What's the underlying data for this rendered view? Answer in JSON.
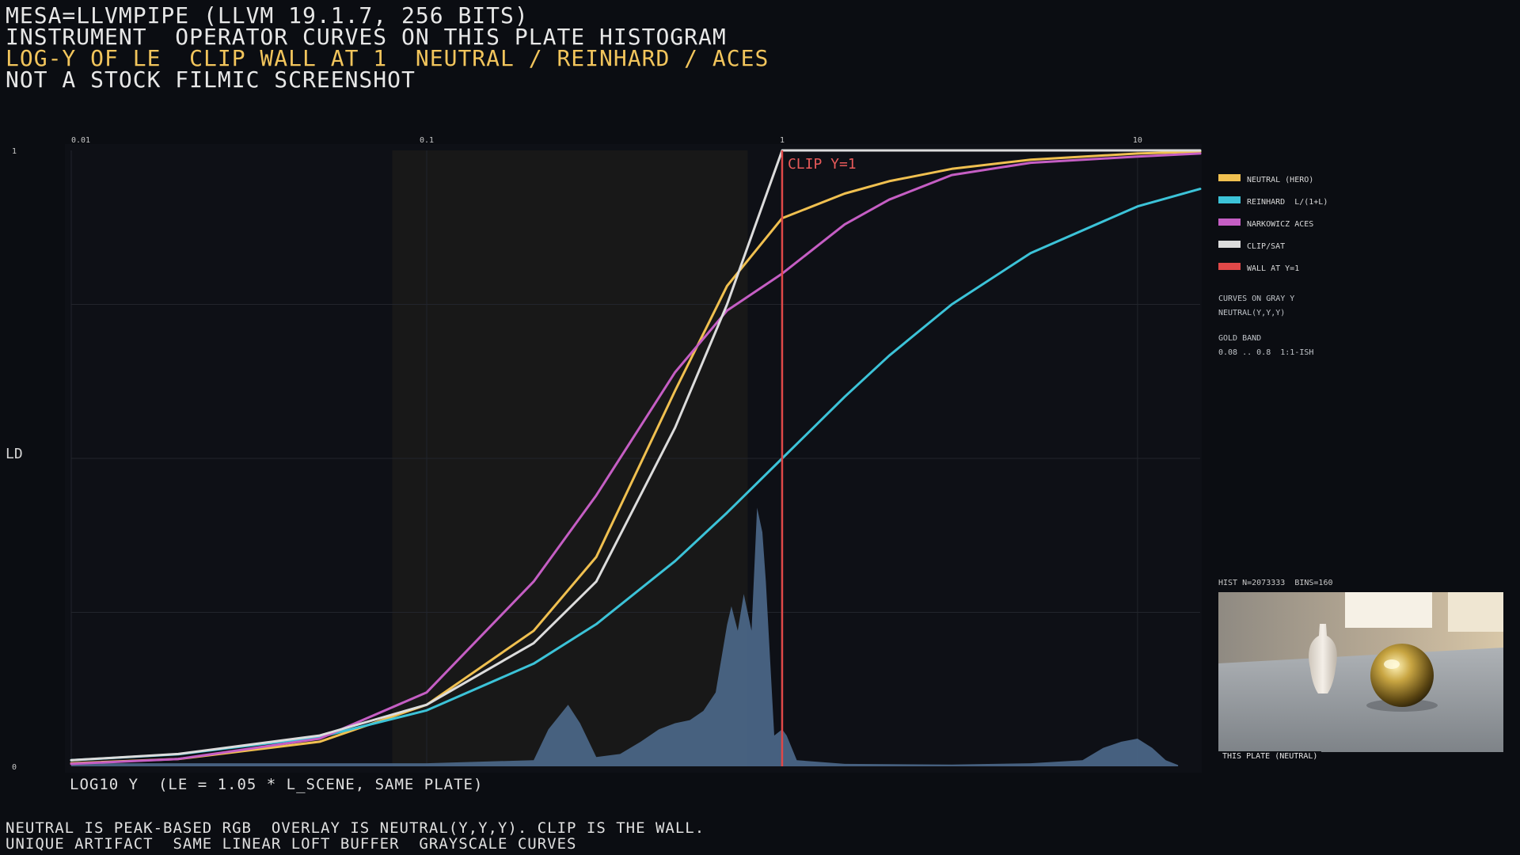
{
  "header": {
    "line1": "MESA=LLVMPIPE (LLVM 19.1.7, 256 BITS)",
    "line2": "INSTRUMENT  OPERATOR CURVES ON THIS PLATE HISTOGRAM",
    "line3": "LOG-Y OF LE  CLIP WALL AT 1  NEUTRAL / REINHARD / ACES",
    "line4": "NOT A STOCK FILMIC SCREENSHOT"
  },
  "footer": {
    "line1": "NEUTRAL IS PEAK-BASED RGB  OVERLAY IS NEUTRAL(Y,Y,Y). CLIP IS THE WALL.",
    "line2": "UNIQUE ARTIFACT  SAME LINEAR LOFT BUFFER  GRAYSCALE CURVES"
  },
  "chart_data": {
    "type": "line",
    "x_scale": "log",
    "xlim": [
      0.01,
      15
    ],
    "ylim": [
      0,
      1
    ],
    "xlabel": "LOG10 Y  (LE = 1.05 * L_SCENE, SAME PLATE)",
    "ylabel": "LD",
    "x_ticks": [
      {
        "value": 0.01,
        "label": "0.01"
      },
      {
        "value": 0.1,
        "label": "0.1"
      },
      {
        "value": 1,
        "label": "1"
      },
      {
        "value": 10,
        "label": "10"
      }
    ],
    "y_ticks": [
      {
        "value": 0,
        "label": "0"
      },
      {
        "value": 1,
        "label": "1"
      }
    ],
    "gold_band": [
      0.08,
      0.8
    ],
    "wall": {
      "x": 1,
      "label": "CLIP Y=1"
    },
    "series": [
      {
        "name": "NEUTRAL (HERO)",
        "color": "#f0c050",
        "x": [
          0.01,
          0.02,
          0.05,
          0.1,
          0.2,
          0.3,
          0.5,
          0.7,
          1,
          1.5,
          2,
          3,
          5,
          10,
          15
        ],
        "y": [
          0.005,
          0.012,
          0.04,
          0.1,
          0.22,
          0.34,
          0.61,
          0.78,
          0.89,
          0.93,
          0.95,
          0.97,
          0.985,
          0.995,
          0.998
        ]
      },
      {
        "name": "REINHARD  L/(1+L)",
        "color": "#3cc3d8",
        "x": [
          0.01,
          0.02,
          0.05,
          0.1,
          0.2,
          0.3,
          0.5,
          0.7,
          1,
          1.5,
          2,
          3,
          5,
          10,
          15
        ],
        "y": [
          0.0099,
          0.0196,
          0.0476,
          0.0909,
          0.1667,
          0.2308,
          0.3333,
          0.4118,
          0.5,
          0.6,
          0.6667,
          0.75,
          0.8333,
          0.9091,
          0.9375
        ]
      },
      {
        "name": "NARKOWICZ ACES",
        "color": "#c55ec4",
        "x": [
          0.01,
          0.02,
          0.05,
          0.1,
          0.2,
          0.3,
          0.5,
          0.7,
          1,
          1.5,
          2,
          3,
          5,
          10,
          15
        ],
        "y": [
          0.004,
          0.012,
          0.045,
          0.12,
          0.3,
          0.44,
          0.64,
          0.74,
          0.8,
          0.88,
          0.92,
          0.96,
          0.98,
          0.99,
          0.995
        ]
      },
      {
        "name": "CLIP/SAT",
        "color": "#dcdcdc",
        "x": [
          0.01,
          0.02,
          0.05,
          0.1,
          0.2,
          0.3,
          0.5,
          0.7,
          1,
          1.5,
          2,
          3,
          5,
          10,
          15
        ],
        "y": [
          0.01,
          0.02,
          0.05,
          0.1,
          0.2,
          0.3,
          0.55,
          0.75,
          1,
          1,
          1,
          1,
          1,
          1,
          1
        ]
      },
      {
        "name": "WALL AT Y=1",
        "color": "#e04848"
      }
    ],
    "histogram": {
      "n": 2073333,
      "bins": 160,
      "color": "#4a6585",
      "points": [
        [
          0.01,
          0.005
        ],
        [
          0.05,
          0.005
        ],
        [
          0.1,
          0.005
        ],
        [
          0.2,
          0.01
        ],
        [
          0.22,
          0.06
        ],
        [
          0.25,
          0.1
        ],
        [
          0.27,
          0.07
        ],
        [
          0.3,
          0.015
        ],
        [
          0.35,
          0.02
        ],
        [
          0.4,
          0.04
        ],
        [
          0.45,
          0.06
        ],
        [
          0.5,
          0.07
        ],
        [
          0.55,
          0.075
        ],
        [
          0.6,
          0.09
        ],
        [
          0.65,
          0.12
        ],
        [
          0.7,
          0.23
        ],
        [
          0.72,
          0.26
        ],
        [
          0.75,
          0.22
        ],
        [
          0.78,
          0.28
        ],
        [
          0.82,
          0.22
        ],
        [
          0.85,
          0.42
        ],
        [
          0.88,
          0.38
        ],
        [
          0.9,
          0.3
        ],
        [
          0.95,
          0.05
        ],
        [
          1.0,
          0.06
        ],
        [
          1.03,
          0.05
        ],
        [
          1.1,
          0.01
        ],
        [
          1.5,
          0.004
        ],
        [
          3,
          0.003
        ],
        [
          5,
          0.005
        ],
        [
          7,
          0.01
        ],
        [
          8,
          0.03
        ],
        [
          9,
          0.04
        ],
        [
          10,
          0.045
        ],
        [
          11,
          0.03
        ],
        [
          12,
          0.01
        ],
        [
          13,
          0.002
        ]
      ]
    }
  },
  "legend": {
    "items": [
      {
        "label": "NEUTRAL (HERO)",
        "color": "#f0c050"
      },
      {
        "label": "REINHARD  L/(1+L)",
        "color": "#3cc3d8"
      },
      {
        "label": "NARKOWICZ ACES",
        "color": "#c55ec4"
      },
      {
        "label": "CLIP/SAT",
        "color": "#dcdcdc"
      },
      {
        "label": "WALL AT Y=1",
        "color": "#e04848"
      }
    ]
  },
  "notes": {
    "curves_line1": "CURVES ON GRAY Y",
    "curves_line2": "NEUTRAL(Y,Y,Y)",
    "band_line1": "GOLD BAND",
    "band_line2": "0.08 .. 0.8  1:1-ISH"
  },
  "hist_label": "HIST N=2073333  BINS=160",
  "thumbnail_caption": "THIS PLATE (NEUTRAL)"
}
